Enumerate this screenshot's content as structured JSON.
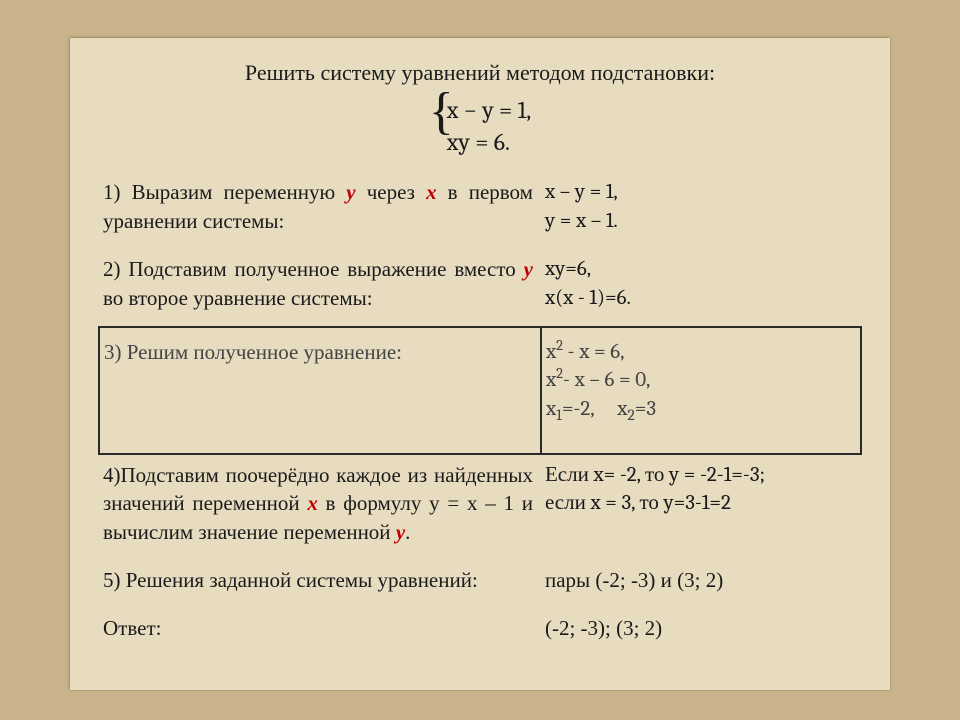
{
  "title": "Решить систему уравнений методом подстановки:",
  "system": {
    "line1": "x − y = 1,",
    "line2": "xy = 6."
  },
  "rows": {
    "r1": {
      "left_a": "1) Выразим переменную ",
      "left_b": " через ",
      "left_c": " в первом уравнении системы:",
      "y": "y",
      "x": "x",
      "right1": "x – y = 1,",
      "right2": "y = x – 1."
    },
    "r2": {
      "left_a": "2) Подставим полученное выражение вместо ",
      "left_b": " во второе уравнение системы:",
      "y": "y",
      "right1": "xy=6,",
      "right2": "x(x - 1)=6."
    },
    "r3": {
      "left": "3) Решим полученное уравнение:",
      "eq1a": "x",
      "eq1b": " - x = 6,",
      "eq2a": "x",
      "eq2b": "- x – 6 = 0,",
      "sol_x1_lbl": "x",
      "sol_x1_val": "=-2,",
      "sol_x2_lbl": "x",
      "sol_x2_val": "=3"
    },
    "r4": {
      "left_a": "4)Подставим поочерёдно каждое из найденных значений переменной ",
      "left_b": " в формулу y = x – 1  и вычислим значение переменной  ",
      "left_c": ".",
      "x": "x",
      "y": "y",
      "right1": "Если  x= -2,  то  y = -2-1=-3;",
      "right2": "если   x = 3,  то  y=3-1=2"
    },
    "r5": {
      "left": "5) Решения  заданной  системы  уравнений:",
      "right": "пары (-2; -3) и (3; 2)"
    },
    "ans": {
      "left": "Ответ:",
      "right": "(-2; -3); (3; 2)"
    }
  }
}
